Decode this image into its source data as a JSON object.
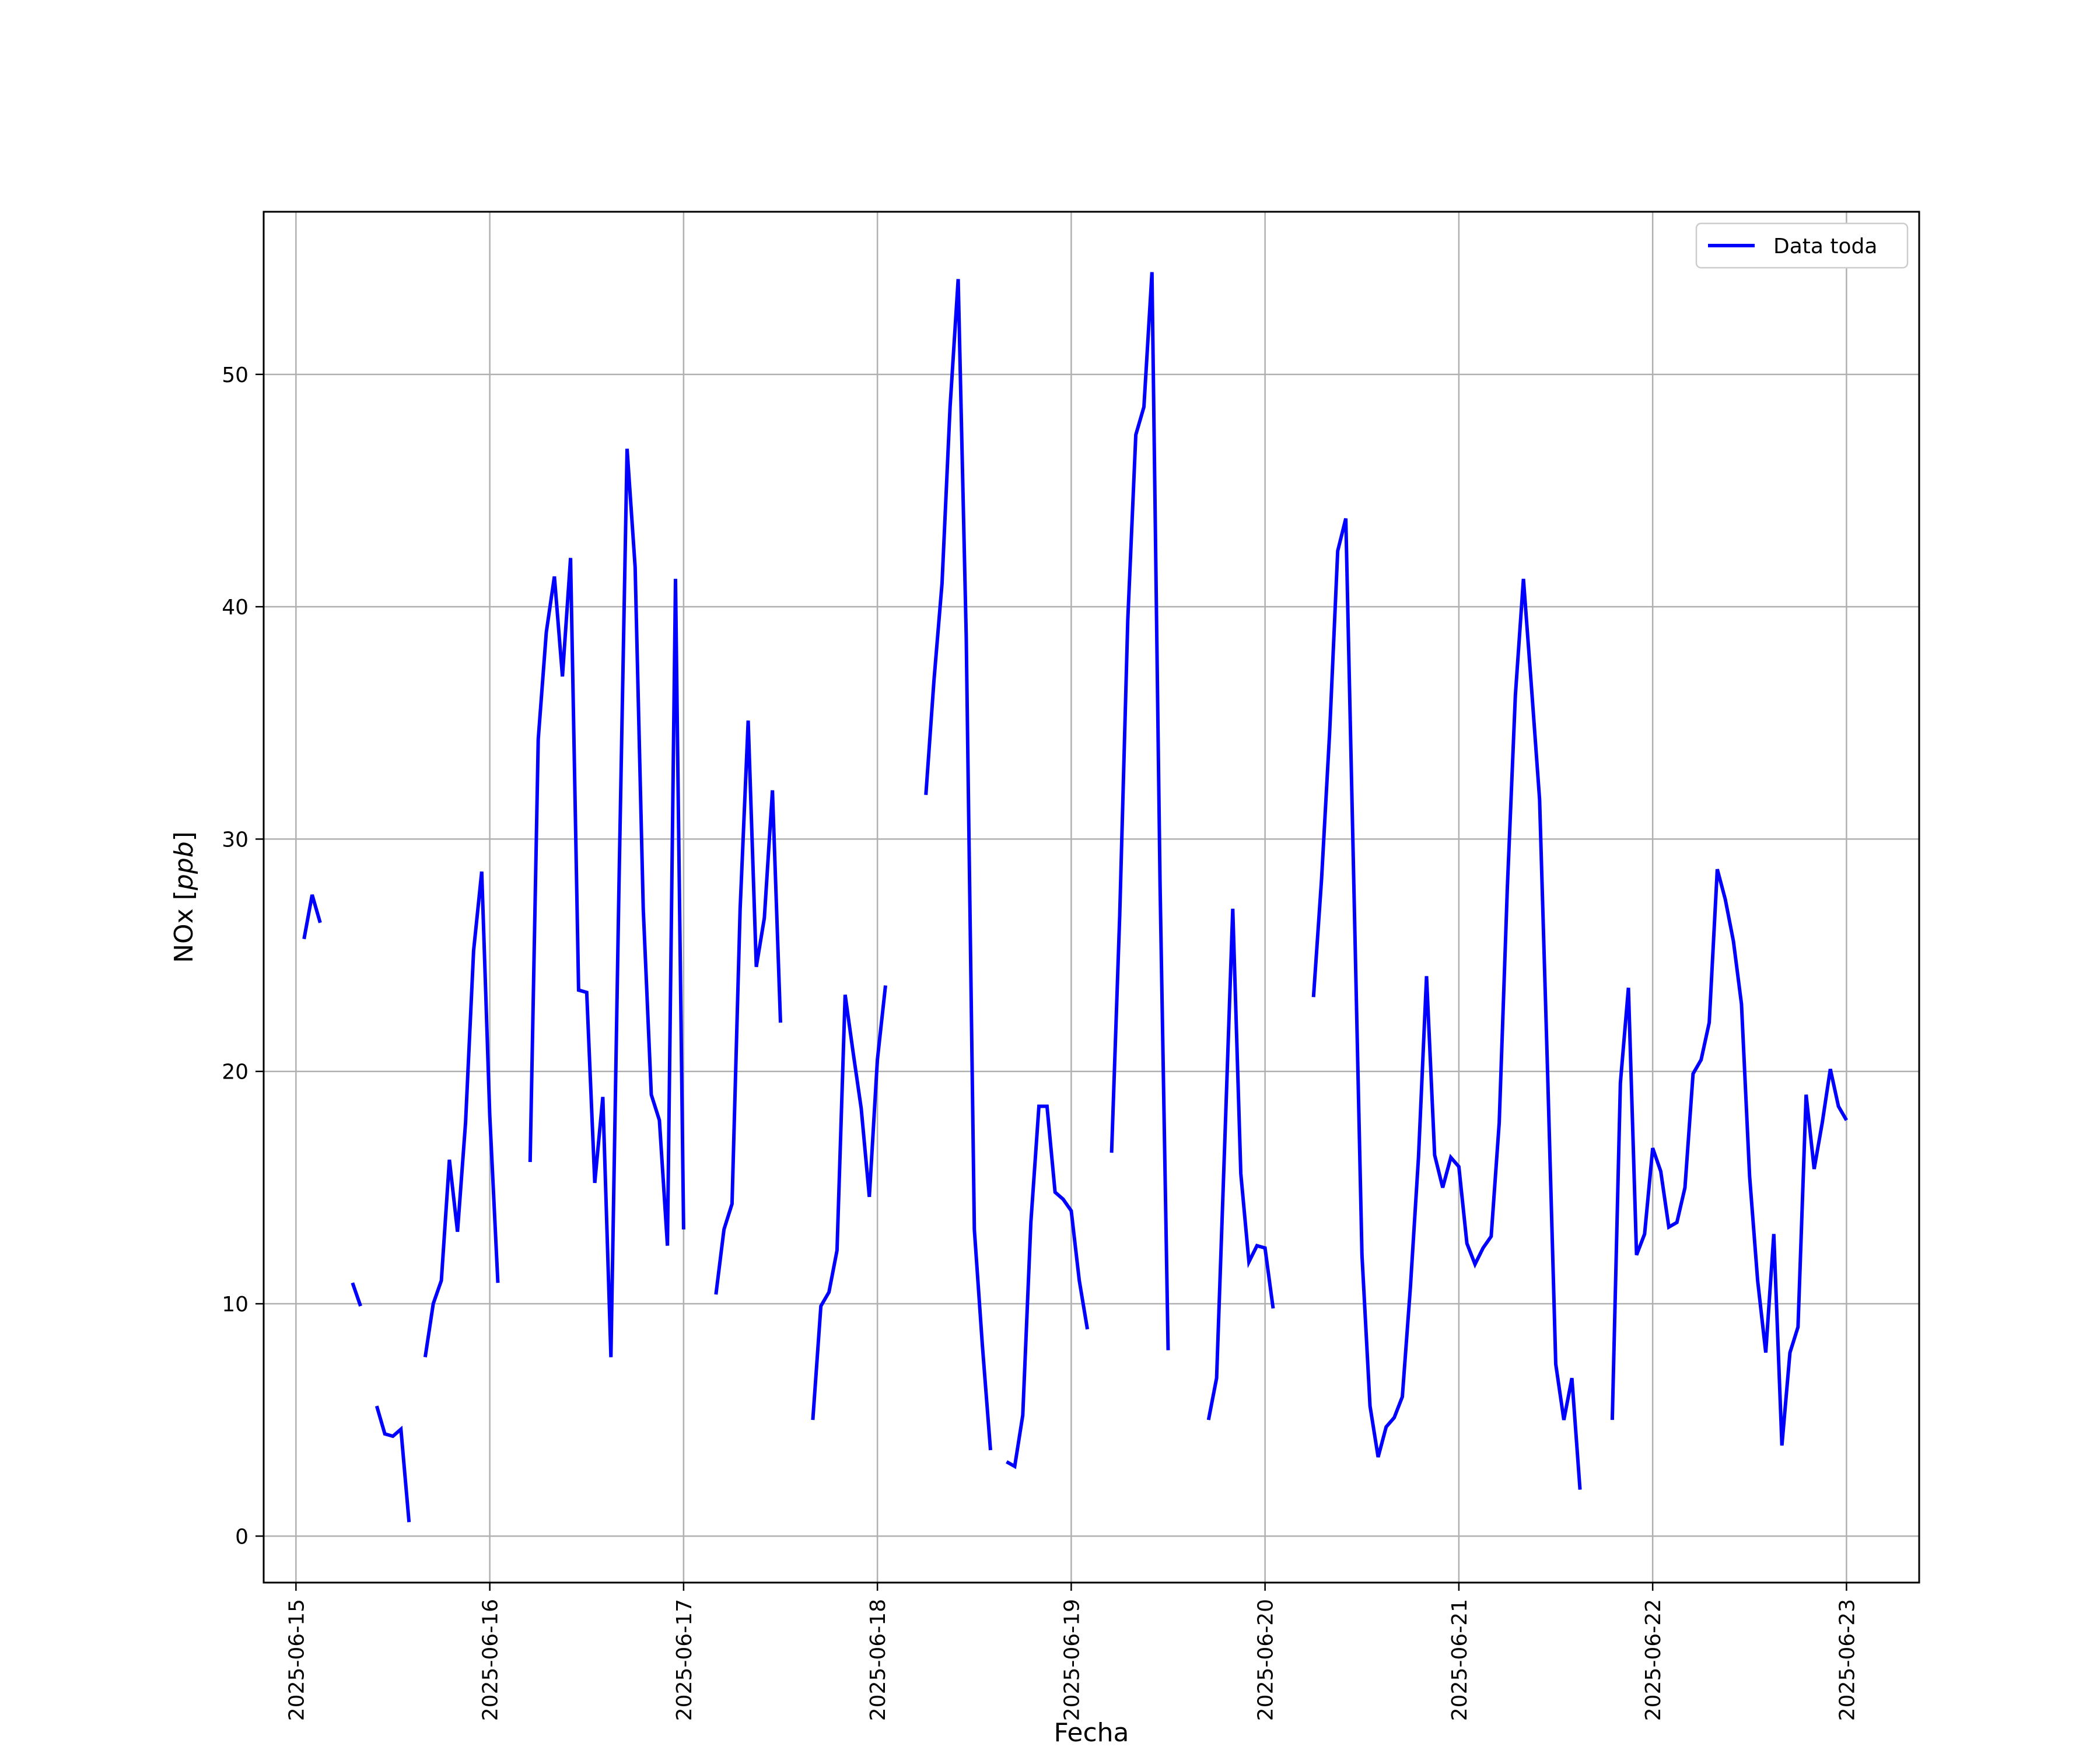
{
  "chart_data": {
    "type": "line",
    "title": "",
    "xlabel": "Fecha",
    "ylabel": "NOx [ppb]",
    "xlim": [
      "2025-06-14 20:00",
      "2025-06-23 09:00"
    ],
    "ylim": [
      -2,
      57
    ],
    "x_ticks": [
      "2025-06-15",
      "2025-06-16",
      "2025-06-17",
      "2025-06-18",
      "2025-06-19",
      "2025-06-20",
      "2025-06-21",
      "2025-06-22",
      "2025-06-23"
    ],
    "y_ticks": [
      "0",
      "10",
      "20",
      "30",
      "40",
      "50"
    ],
    "grid": true,
    "legend": {
      "position": "top-right"
    },
    "series": [
      {
        "name": "Data toda",
        "color": "#0000ff",
        "segments": [
          [
            [
              "2025-06-15 01:00",
              25.7
            ],
            [
              "2025-06-15 02:00",
              27.6
            ],
            [
              "2025-06-15 03:00",
              26.4
            ]
          ],
          [
            [
              "2025-06-15 07:00",
              10.9
            ],
            [
              "2025-06-15 08:00",
              9.9
            ]
          ],
          [
            [
              "2025-06-15 10:00",
              5.6
            ],
            [
              "2025-06-15 11:00",
              4.4
            ],
            [
              "2025-06-15 12:00",
              4.3
            ],
            [
              "2025-06-15 13:00",
              4.6
            ],
            [
              "2025-06-15 14:00",
              0.6
            ]
          ],
          [
            [
              "2025-06-15 16:00",
              7.7
            ],
            [
              "2025-06-15 17:00",
              10.0
            ],
            [
              "2025-06-15 18:00",
              11.0
            ],
            [
              "2025-06-15 19:00",
              16.2
            ],
            [
              "2025-06-15 20:00",
              13.1
            ],
            [
              "2025-06-15 21:00",
              17.8
            ],
            [
              "2025-06-15 22:00",
              25.2
            ],
            [
              "2025-06-15 23:00",
              28.6
            ],
            [
              "2025-06-16 00:00",
              18.1
            ],
            [
              "2025-06-16 01:00",
              10.9
            ]
          ],
          [
            [
              "2025-06-16 05:00",
              16.1
            ],
            [
              "2025-06-16 06:00",
              34.3
            ],
            [
              "2025-06-16 07:00",
              38.9
            ],
            [
              "2025-06-16 08:00",
              41.3
            ],
            [
              "2025-06-16 09:00",
              37.0
            ],
            [
              "2025-06-16 10:00",
              42.1
            ],
            [
              "2025-06-16 11:00",
              23.5
            ],
            [
              "2025-06-16 12:00",
              23.4
            ],
            [
              "2025-06-16 13:00",
              15.2
            ],
            [
              "2025-06-16 14:00",
              18.9
            ],
            [
              "2025-06-16 15:00",
              7.7
            ],
            [
              "2025-06-16 16:00",
              28.0
            ],
            [
              "2025-06-16 17:00",
              46.8
            ],
            [
              "2025-06-16 18:00",
              41.7
            ],
            [
              "2025-06-16 19:00",
              27.0
            ],
            [
              "2025-06-16 20:00",
              19.0
            ],
            [
              "2025-06-16 21:00",
              17.9
            ],
            [
              "2025-06-16 22:00",
              12.5
            ],
            [
              "2025-06-16 23:00",
              41.2
            ],
            [
              "2025-06-17 00:00",
              13.2
            ]
          ],
          [
            [
              "2025-06-17 04:00",
              10.4
            ],
            [
              "2025-06-17 05:00",
              13.2
            ],
            [
              "2025-06-17 06:00",
              14.3
            ],
            [
              "2025-06-17 07:00",
              27.0
            ],
            [
              "2025-06-17 08:00",
              35.1
            ],
            [
              "2025-06-17 09:00",
              24.5
            ],
            [
              "2025-06-17 10:00",
              26.6
            ],
            [
              "2025-06-17 11:00",
              32.1
            ],
            [
              "2025-06-17 12:00",
              22.1
            ]
          ],
          [
            [
              "2025-06-17 16:00",
              5.0
            ],
            [
              "2025-06-17 17:00",
              9.9
            ],
            [
              "2025-06-17 18:00",
              10.5
            ],
            [
              "2025-06-17 19:00",
              12.3
            ],
            [
              "2025-06-17 20:00",
              23.3
            ],
            [
              "2025-06-17 21:00",
              20.8
            ],
            [
              "2025-06-17 22:00",
              18.4
            ],
            [
              "2025-06-17 23:00",
              14.6
            ],
            [
              "2025-06-18 00:00",
              20.5
            ],
            [
              "2025-06-18 01:00",
              23.7
            ]
          ],
          [
            [
              "2025-06-18 06:00",
              31.9
            ],
            [
              "2025-06-18 07:00",
              36.8
            ],
            [
              "2025-06-18 08:00",
              41.0
            ],
            [
              "2025-06-18 09:00",
              48.6
            ],
            [
              "2025-06-18 10:00",
              54.1
            ],
            [
              "2025-06-18 11:00",
              38.7
            ],
            [
              "2025-06-18 12:00",
              13.2
            ],
            [
              "2025-06-18 13:00",
              8.2
            ],
            [
              "2025-06-18 14:00",
              3.7
            ]
          ],
          [
            [
              "2025-06-18 16:00",
              3.2
            ],
            [
              "2025-06-18 17:00",
              3.0
            ],
            [
              "2025-06-18 18:00",
              5.2
            ],
            [
              "2025-06-18 19:00",
              13.5
            ],
            [
              "2025-06-18 20:00",
              18.5
            ],
            [
              "2025-06-18 21:00",
              18.5
            ],
            [
              "2025-06-18 22:00",
              14.8
            ],
            [
              "2025-06-18 23:00",
              14.5
            ],
            [
              "2025-06-19 00:00",
              14.0
            ],
            [
              "2025-06-19 01:00",
              11.0
            ],
            [
              "2025-06-19 02:00",
              8.9
            ]
          ],
          [
            [
              "2025-06-19 05:00",
              16.5
            ],
            [
              "2025-06-19 06:00",
              26.7
            ],
            [
              "2025-06-19 07:00",
              39.4
            ],
            [
              "2025-06-19 08:00",
              47.4
            ],
            [
              "2025-06-19 09:00",
              48.6
            ],
            [
              "2025-06-19 10:00",
              54.4
            ],
            [
              "2025-06-19 11:00",
              28.0
            ],
            [
              "2025-06-19 12:00",
              8.0
            ]
          ],
          [
            [
              "2025-06-19 17:00",
              5.0
            ],
            [
              "2025-06-19 18:00",
              6.8
            ],
            [
              "2025-06-19 19:00",
              16.8
            ],
            [
              "2025-06-19 20:00",
              27.0
            ],
            [
              "2025-06-19 21:00",
              15.6
            ],
            [
              "2025-06-19 22:00",
              11.8
            ],
            [
              "2025-06-19 23:00",
              12.5
            ],
            [
              "2025-06-20 00:00",
              12.4
            ],
            [
              "2025-06-20 01:00",
              9.8
            ]
          ],
          [
            [
              "2025-06-20 06:00",
              23.2
            ],
            [
              "2025-06-20 07:00",
              28.3
            ],
            [
              "2025-06-20 08:00",
              34.6
            ],
            [
              "2025-06-20 09:00",
              42.4
            ],
            [
              "2025-06-20 10:00",
              43.8
            ],
            [
              "2025-06-20 11:00",
              28.0
            ],
            [
              "2025-06-20 12:00",
              12.1
            ],
            [
              "2025-06-20 13:00",
              5.6
            ],
            [
              "2025-06-20 14:00",
              3.4
            ],
            [
              "2025-06-20 15:00",
              4.7
            ],
            [
              "2025-06-20 16:00",
              5.1
            ],
            [
              "2025-06-20 17:00",
              6.0
            ],
            [
              "2025-06-20 18:00",
              10.7
            ],
            [
              "2025-06-20 19:00",
              16.3
            ],
            [
              "2025-06-20 20:00",
              24.1
            ],
            [
              "2025-06-20 21:00",
              16.4
            ],
            [
              "2025-06-20 22:00",
              15.0
            ],
            [
              "2025-06-20 23:00",
              16.3
            ],
            [
              "2025-06-21 00:00",
              15.9
            ],
            [
              "2025-06-21 01:00",
              12.6
            ],
            [
              "2025-06-21 02:00",
              11.7
            ],
            [
              "2025-06-21 03:00",
              12.4
            ],
            [
              "2025-06-21 04:00",
              12.9
            ],
            [
              "2025-06-21 05:00",
              17.8
            ],
            [
              "2025-06-21 06:00",
              27.9
            ],
            [
              "2025-06-21 07:00",
              36.2
            ],
            [
              "2025-06-21 08:00",
              41.2
            ],
            [
              "2025-06-21 09:00",
              36.5
            ],
            [
              "2025-06-21 10:00",
              31.7
            ],
            [
              "2025-06-21 11:00",
              19.8
            ],
            [
              "2025-06-21 12:00",
              7.4
            ],
            [
              "2025-06-21 13:00",
              5.0
            ],
            [
              "2025-06-21 14:00",
              6.8
            ],
            [
              "2025-06-21 15:00",
              2.0
            ]
          ],
          [
            [
              "2025-06-21 19:00",
              5.0
            ],
            [
              "2025-06-21 20:00",
              19.5
            ],
            [
              "2025-06-21 21:00",
              23.6
            ],
            [
              "2025-06-21 22:00",
              12.1
            ],
            [
              "2025-06-21 23:00",
              13.0
            ],
            [
              "2025-06-22 00:00",
              16.7
            ],
            [
              "2025-06-22 01:00",
              15.7
            ],
            [
              "2025-06-22 02:00",
              13.3
            ],
            [
              "2025-06-22 03:00",
              13.5
            ],
            [
              "2025-06-22 04:00",
              15.0
            ],
            [
              "2025-06-22 05:00",
              19.9
            ],
            [
              "2025-06-22 06:00",
              20.5
            ],
            [
              "2025-06-22 07:00",
              22.1
            ],
            [
              "2025-06-22 08:00",
              28.7
            ],
            [
              "2025-06-22 09:00",
              27.4
            ],
            [
              "2025-06-22 10:00",
              25.6
            ],
            [
              "2025-06-22 11:00",
              22.9
            ],
            [
              "2025-06-22 12:00",
              15.5
            ],
            [
              "2025-06-22 13:00",
              11.0
            ],
            [
              "2025-06-22 14:00",
              7.9
            ],
            [
              "2025-06-22 15:00",
              13.0
            ],
            [
              "2025-06-22 16:00",
              3.9
            ],
            [
              "2025-06-22 17:00",
              7.9
            ],
            [
              "2025-06-22 18:00",
              9.0
            ],
            [
              "2025-06-22 19:00",
              19.0
            ],
            [
              "2025-06-22 20:00",
              15.8
            ],
            [
              "2025-06-22 21:00",
              17.8
            ],
            [
              "2025-06-22 22:00",
              20.1
            ],
            [
              "2025-06-22 23:00",
              18.5
            ],
            [
              "2025-06-23 00:00",
              17.9
            ]
          ]
        ]
      }
    ]
  }
}
